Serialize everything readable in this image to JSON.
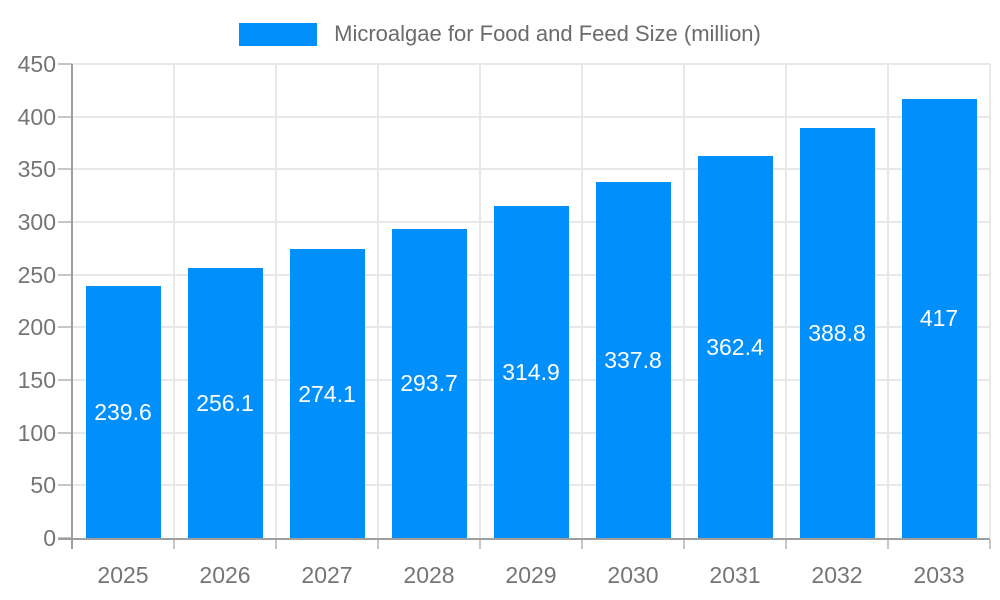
{
  "legend": {
    "label": "Microalgae for Food and Feed Size (million)"
  },
  "chart_data": {
    "type": "bar",
    "title": "Microalgae for Food and Feed Size (million)",
    "categories": [
      "2025",
      "2026",
      "2027",
      "2028",
      "2029",
      "2030",
      "2031",
      "2032",
      "2033"
    ],
    "series": [
      {
        "name": "Microalgae for Food and Feed Size (million)",
        "values": [
          239.6,
          256.1,
          274.1,
          293.7,
          314.9,
          337.8,
          362.4,
          388.8,
          417
        ]
      }
    ],
    "value_labels": [
      "239.6",
      "256.1",
      "274.1",
      "293.7",
      "314.9",
      "337.8",
      "362.4",
      "388.8",
      "417"
    ],
    "xlabel": "",
    "ylabel": "",
    "ylim": [
      0,
      450
    ],
    "yticks": [
      0,
      50,
      100,
      150,
      200,
      250,
      300,
      350,
      400,
      450
    ],
    "grid": true,
    "legend_position": "top",
    "colors": {
      "bar": "#008FFB",
      "value_label_text": "#ffffff",
      "axis_label_text": "#757575",
      "legend_text": "#6b6b6b",
      "gridline": "#e8e8e8",
      "axis_line": "#9e9e9e",
      "tick": "#c6c6c6"
    }
  }
}
